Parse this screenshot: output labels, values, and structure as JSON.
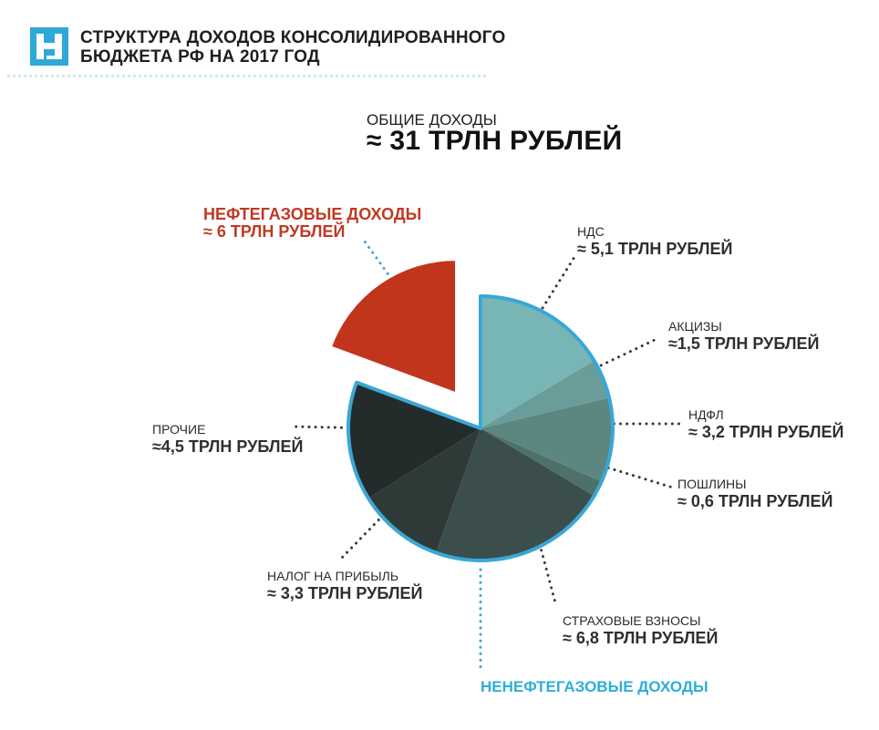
{
  "header": {
    "title": "СТРУКТУРА ДОХОДОВ КОНСОЛИДИРОВАННОГО\nБЮДЖЕТА РФ НА 2017 ГОД"
  },
  "total": {
    "caption": "ОБЩИЕ ДОХОДЫ",
    "value": "≈ 31 ТРЛН РУБЛЕЙ"
  },
  "non_oil_gas_label": "НЕНЕФТЕГАЗОВЫЕ ДОХОДЫ",
  "colors": {
    "oil_gas": "#c0351c",
    "non_oil_gas_outline": "#3aa7d6",
    "group_label": "#2eaed8",
    "logo": "#2fa9d8"
  },
  "chart_data": {
    "type": "pie",
    "unit": "трлн рублей",
    "total": 31,
    "slices": [
      {
        "name": "НДС",
        "value": 5.1,
        "label": "≈ 5,1 ТРЛН РУБЛЕЙ",
        "group": "non_oil_gas",
        "color": "#78b6b5"
      },
      {
        "name": "АКЦИЗЫ",
        "value": 1.5,
        "label": "≈1,5 ТРЛН РУБЛЕЙ",
        "group": "non_oil_gas",
        "color": "#6a9d9a"
      },
      {
        "name": "НДФЛ",
        "value": 3.2,
        "label": "≈ 3,2 ТРЛН РУБЛЕЙ",
        "group": "non_oil_gas",
        "color": "#5c8680"
      },
      {
        "name": "ПОШЛИНЫ",
        "value": 0.6,
        "label": "≈ 0,6 ТРЛН РУБЛЕЙ",
        "group": "non_oil_gas",
        "color": "#4e706b"
      },
      {
        "name": "СТРАХОВЫЕ ВЗНОСЫ",
        "value": 6.8,
        "label": "≈ 6,8 ТРЛН РУБЛЕЙ",
        "group": "non_oil_gas",
        "color": "#3b4e4b"
      },
      {
        "name": "НАЛОГ НА ПРИБЫЛЬ",
        "value": 3.3,
        "label": "≈ 3,3 ТРЛН РУБЛЕЙ",
        "group": "non_oil_gas",
        "color": "#2e3a37"
      },
      {
        "name": "ПРОЧИЕ",
        "value": 4.5,
        "label": "≈4,5 ТРЛН РУБЛЕЙ",
        "group": "non_oil_gas",
        "color": "#232c2a"
      },
      {
        "name": "НЕФТЕГАЗОВЫЕ ДОХОДЫ",
        "value": 6,
        "label": "≈ 6 ТРЛН РУБЛЕЙ",
        "group": "oil_gas",
        "color": "#c0351c"
      }
    ]
  }
}
